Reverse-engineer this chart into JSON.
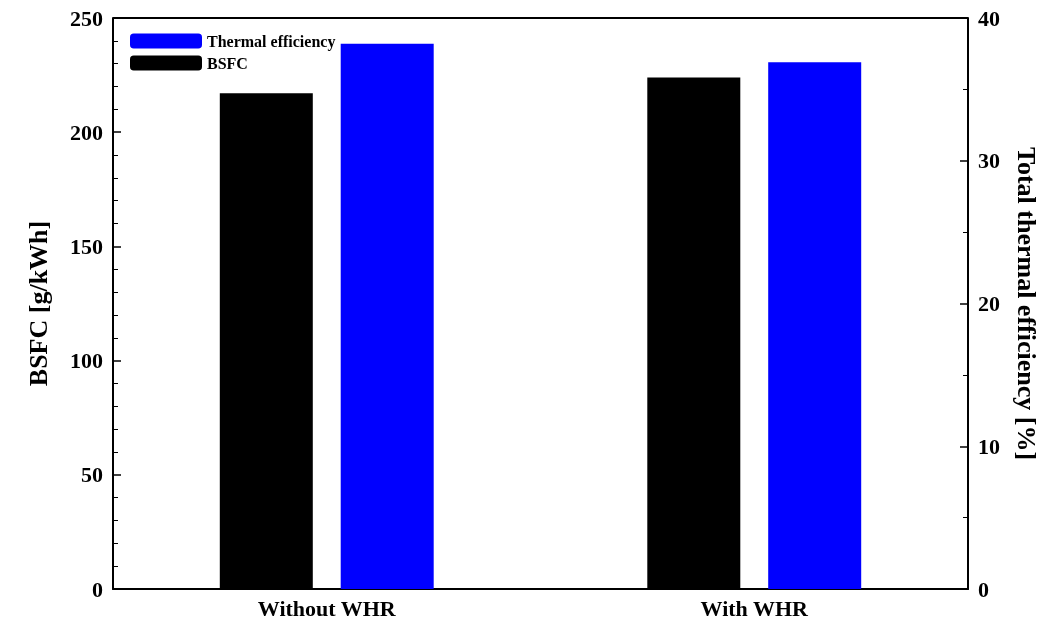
{
  "chart_data": {
    "type": "bar",
    "ylabel": "BSFC [g/kWh]",
    "y2label": "Total thermal efficiency [%]",
    "categories": [
      "Without WHR",
      "With WHR"
    ],
    "series": [
      {
        "name": "BSFC",
        "color": "#000000",
        "values": [
          217,
          224
        ]
      },
      {
        "name": "Thermal efficiency",
        "color": "#0000ff",
        "values": [
          38.2,
          36.9
        ],
        "axis": "y2"
      }
    ],
    "ylim": [
      0,
      250
    ],
    "yticks": [
      0,
      50,
      100,
      150,
      200,
      250
    ],
    "y2lim": [
      0,
      40
    ],
    "y2ticks": [
      0,
      10,
      20,
      30,
      40
    ],
    "legend": "top left",
    "grid": false
  }
}
